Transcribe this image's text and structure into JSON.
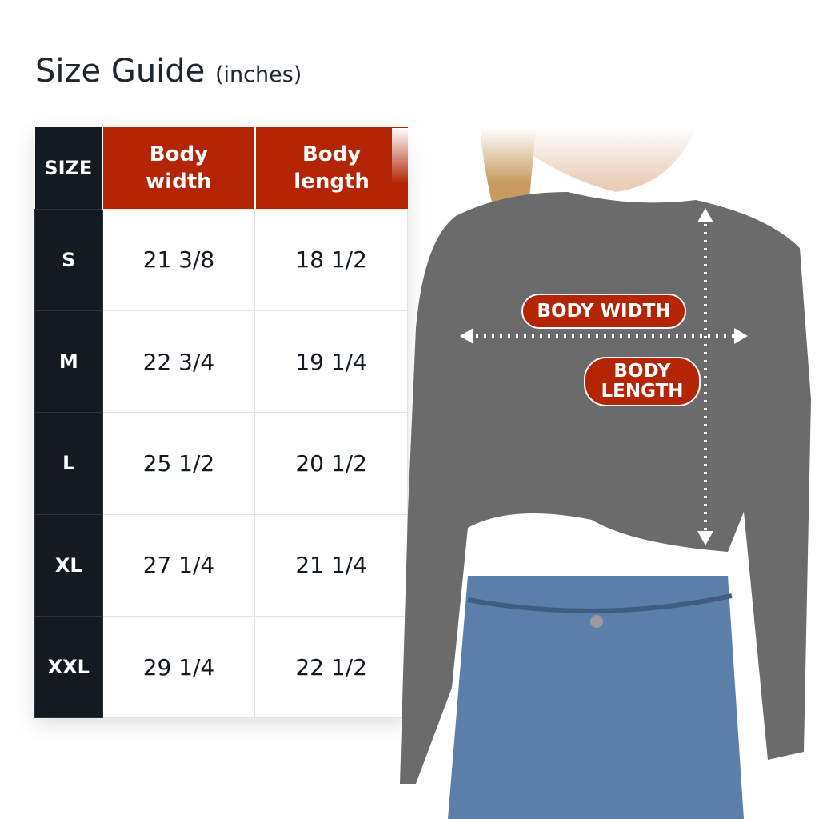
{
  "title": {
    "main": "Size Guide",
    "unit": "(inches)"
  },
  "table": {
    "headers": [
      "SIZE",
      "Body width",
      "Body length"
    ],
    "rows": [
      {
        "size": "S",
        "width": "21 3/8",
        "length": "18 1/2"
      },
      {
        "size": "M",
        "width": "22 3/4",
        "length": "19 1/4"
      },
      {
        "size": "L",
        "width": "25 1/2",
        "length": "20 1/2"
      },
      {
        "size": "XL",
        "width": "27 1/4",
        "length": "21 1/4"
      },
      {
        "size": "XXL",
        "width": "29 1/4",
        "length": "22 1/2"
      }
    ]
  },
  "photo": {
    "width_label": "BODY WIDTH",
    "length_label": "BODY LENGTH"
  },
  "colors": {
    "accent": "#b32505",
    "dark": "#131a22",
    "garment": "#6b6b6b"
  }
}
